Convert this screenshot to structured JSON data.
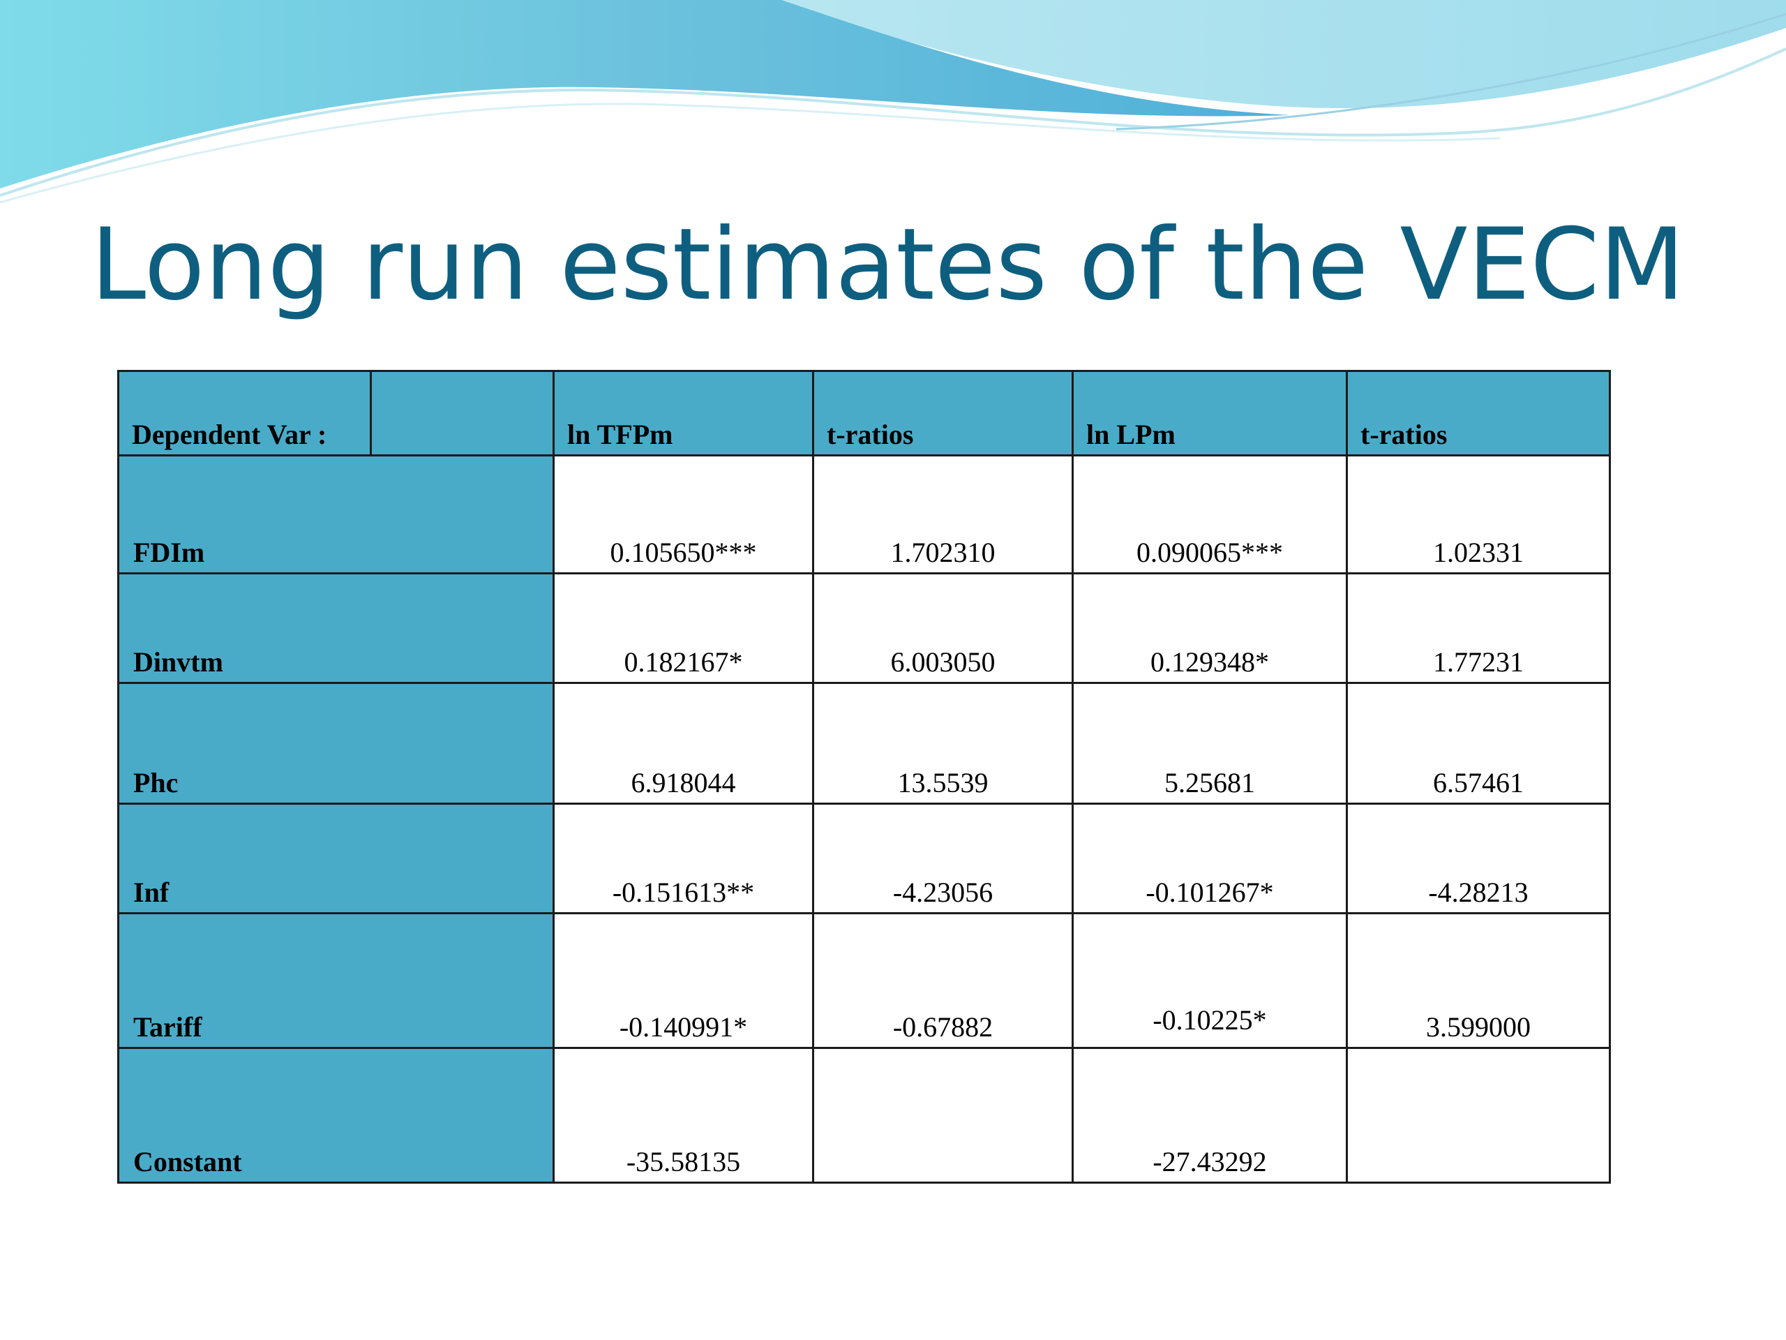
{
  "slide": {
    "title": "Long run estimates of the VECM"
  },
  "theme": {
    "title_color": "#0e5f7f",
    "header_fill": "#4aabc9",
    "wave_light": "#7fd4e6",
    "wave_dark": "#3aa6cf"
  },
  "table": {
    "headers": [
      "Dependent Var :",
      "",
      "ln TFPm",
      "t-ratios",
      "ln LPm",
      "t-ratios"
    ],
    "rows": [
      {
        "label": "FDIm",
        "values": [
          "0.105650***",
          "1.702310",
          "0.090065***",
          "1.02331"
        ]
      },
      {
        "label": "Dinvtm",
        "values": [
          "0.182167*",
          "6.003050",
          "0.129348*",
          "1.77231"
        ]
      },
      {
        "label": "Phc",
        "values": [
          "6.918044",
          "13.5539",
          "5.25681",
          "6.57461"
        ]
      },
      {
        "label": "Inf",
        "values": [
          "-0.151613**",
          "-4.23056",
          "-0.101267*",
          "-4.28213"
        ]
      },
      {
        "label": "Tariff",
        "values": [
          "-0.140991*",
          "-0.67882",
          "-0.10225*",
          "3.599000"
        ]
      },
      {
        "label": "Constant",
        "values": [
          "-35.58135",
          "",
          "-27.43292",
          ""
        ]
      }
    ]
  }
}
